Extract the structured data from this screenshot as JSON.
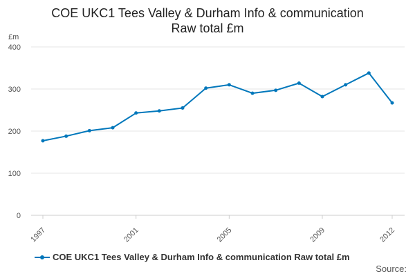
{
  "chart_data": {
    "type": "line",
    "title_line1": "COE UKC1 Tees Valley & Durham Info & communication",
    "title_line2": "Raw total £m",
    "ylabel": "£m",
    "ylim": [
      0,
      400
    ],
    "yticks": [
      0,
      100,
      200,
      300,
      400
    ],
    "xlim": [
      1997,
      2012
    ],
    "xticks": [
      1997,
      2001,
      2005,
      2009,
      2012
    ],
    "grid": true,
    "legend_position": "bottom-left",
    "series": [
      {
        "name": "COE UKC1 Tees Valley & Durham Info & communication Raw total £m",
        "color": "#0077bb",
        "x": [
          1997,
          1998,
          1999,
          2000,
          2001,
          2002,
          2003,
          2004,
          2005,
          2006,
          2007,
          2008,
          2009,
          2010,
          2011,
          2012
        ],
        "values": [
          177,
          188,
          201,
          208,
          243,
          248,
          255,
          302,
          310,
          290,
          297,
          314,
          282,
          310,
          338,
          267
        ]
      }
    ]
  },
  "footer": {
    "source": "Source:"
  }
}
